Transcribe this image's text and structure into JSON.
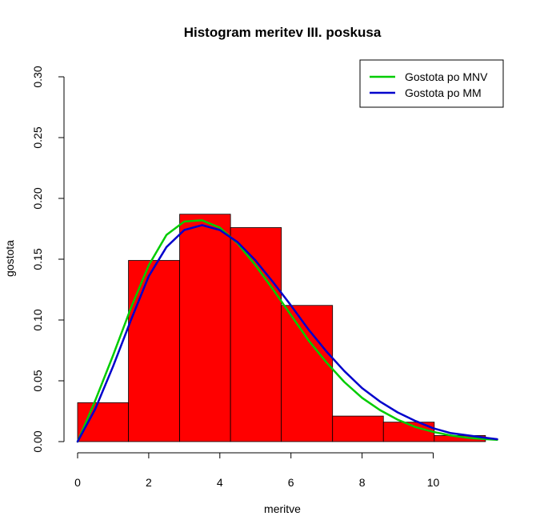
{
  "chart_data": {
    "type": "histogram",
    "title": "Histogram meritev III. poskusa",
    "xlabel": "meritve",
    "ylabel": "gostota",
    "xlim": [
      0,
      11.8
    ],
    "ylim": [
      0,
      0.3
    ],
    "x_ticks": [
      0,
      2,
      4,
      6,
      8,
      10
    ],
    "x_tick_labels": [
      "0",
      "2",
      "4",
      "6",
      "8",
      "10"
    ],
    "y_ticks": [
      0.0,
      0.05,
      0.1,
      0.15,
      0.2,
      0.25,
      0.3
    ],
    "y_tick_labels": [
      "0.00",
      "0.05",
      "0.10",
      "0.15",
      "0.20",
      "0.25",
      "0.30"
    ],
    "bins": [
      {
        "x0": 0.0,
        "x1": 1.43,
        "density": 0.032
      },
      {
        "x0": 1.43,
        "x1": 2.87,
        "density": 0.149
      },
      {
        "x0": 2.87,
        "x1": 4.3,
        "density": 0.187
      },
      {
        "x0": 4.3,
        "x1": 5.73,
        "density": 0.176
      },
      {
        "x0": 5.73,
        "x1": 7.17,
        "density": 0.112
      },
      {
        "x0": 7.17,
        "x1": 8.6,
        "density": 0.021
      },
      {
        "x0": 8.6,
        "x1": 10.03,
        "density": 0.016
      },
      {
        "x0": 10.03,
        "x1": 11.47,
        "density": 0.005
      }
    ],
    "bar_color": "#ff0000",
    "series": [
      {
        "name": "Gostota po MNV",
        "color": "#00cc00",
        "x": [
          0,
          0.5,
          1,
          1.5,
          2,
          2.5,
          3,
          3.5,
          4,
          4.5,
          5,
          5.5,
          6,
          6.5,
          7,
          7.5,
          8,
          8.5,
          9,
          9.5,
          10,
          10.5,
          11,
          11.5,
          11.8
        ],
        "y": [
          0,
          0.034,
          0.071,
          0.11,
          0.145,
          0.17,
          0.181,
          0.182,
          0.176,
          0.163,
          0.145,
          0.125,
          0.104,
          0.083,
          0.065,
          0.049,
          0.036,
          0.026,
          0.018,
          0.012,
          0.008,
          0.005,
          0.003,
          0.002,
          0.0015
        ]
      },
      {
        "name": "Gostota po MM",
        "color": "#0000cc",
        "x": [
          0,
          0.5,
          1,
          1.5,
          2,
          2.5,
          3,
          3.5,
          4,
          4.5,
          5,
          5.5,
          6,
          6.5,
          7,
          7.5,
          8,
          8.5,
          9,
          9.5,
          10,
          10.5,
          11,
          11.5,
          11.8
        ],
        "y": [
          0,
          0.027,
          0.062,
          0.1,
          0.136,
          0.16,
          0.174,
          0.178,
          0.174,
          0.164,
          0.149,
          0.131,
          0.112,
          0.092,
          0.074,
          0.058,
          0.044,
          0.033,
          0.024,
          0.017,
          0.011,
          0.007,
          0.005,
          0.003,
          0.002
        ]
      }
    ],
    "legend": {
      "position": "top-right",
      "entries": [
        "Gostota po MNV",
        "Gostota po MM"
      ]
    }
  }
}
